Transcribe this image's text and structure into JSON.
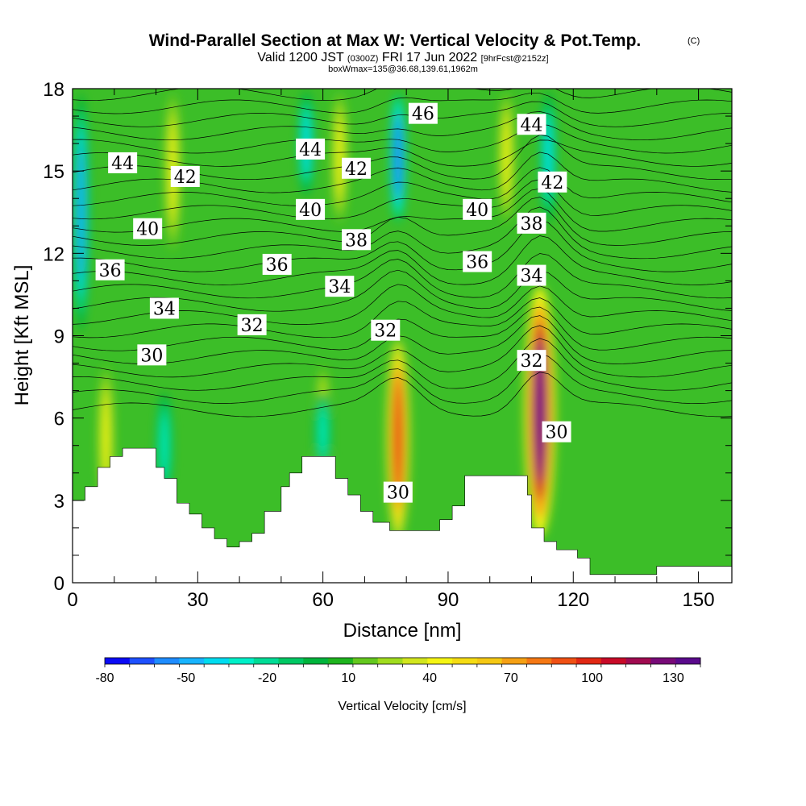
{
  "title": {
    "main": "Wind-Parallel Section at Max W: Vertical Velocity & Pot.Temp.",
    "copyright": "(C)",
    "valid_prefix": "Valid 1200 JST",
    "valid_utc": "(0300Z)",
    "valid_date": "FRI 17 Jun 2022",
    "forecast": "[9hrFcst@2152z]",
    "box_info": "boxWmax=135@36.68,139.61,1962m"
  },
  "chart_data": {
    "type": "heatmap",
    "xlabel": "Distance [nm]",
    "ylabel": "Height [Kft MSL]",
    "xlim": [
      0,
      158
    ],
    "ylim": [
      0,
      18
    ],
    "x_ticks": [
      0,
      30,
      60,
      90,
      120,
      150
    ],
    "y_ticks": [
      0,
      3,
      6,
      9,
      12,
      15,
      18
    ],
    "fill_field": "Vertical Velocity [cm/s]",
    "colorbar": {
      "label": "Vertical Velocity [cm/s]",
      "tick_values": [
        -80,
        -50,
        -20,
        10,
        40,
        70,
        100,
        130
      ],
      "range": [
        -80,
        140
      ],
      "colors": [
        "#0a0af5",
        "#1e50ff",
        "#1e8cff",
        "#18b4ff",
        "#00dcf0",
        "#00f0c8",
        "#00dc96",
        "#00c864",
        "#00b43c",
        "#1eb41e",
        "#64c81e",
        "#a0dc1e",
        "#d2e61e",
        "#f5f514",
        "#f5dc14",
        "#f5c814",
        "#f5a014",
        "#f57814",
        "#f05014",
        "#e12814",
        "#c80a28",
        "#a00a50",
        "#780a78",
        "#5a0a8c"
      ]
    },
    "updraft_cores": [
      {
        "x": 78,
        "y_range": [
          1.5,
          9
        ],
        "w_max": 100
      },
      {
        "x": 112,
        "y_range": [
          1.5,
          11
        ],
        "w_max": 135
      },
      {
        "x": 8,
        "y_range": [
          2.5,
          8
        ],
        "w_max": 45
      },
      {
        "x": 24,
        "y_range": [
          12,
          18
        ],
        "w_max": 45
      },
      {
        "x": 60,
        "y_range": [
          3,
          8
        ],
        "w_max": 45
      },
      {
        "x": 64,
        "y_range": [
          13,
          18
        ],
        "w_max": 40
      },
      {
        "x": 104,
        "y_range": [
          13,
          18
        ],
        "w_max": 40
      }
    ],
    "downdraft_cores": [
      {
        "x": 2,
        "y_range": [
          9,
          18
        ],
        "w_min": -55
      },
      {
        "x": 78,
        "y_range": [
          13,
          18
        ],
        "w_min": -65
      },
      {
        "x": 56,
        "y_range": [
          14,
          18
        ],
        "w_min": -40
      },
      {
        "x": 114,
        "y_range": [
          13,
          18
        ],
        "w_min": -40
      },
      {
        "x": 22,
        "y_range": [
          3,
          7
        ],
        "w_min": -30
      },
      {
        "x": 60,
        "y_range": [
          4,
          7
        ],
        "w_min": -30
      }
    ],
    "terrain": {
      "x": [
        0,
        3,
        6,
        9,
        12,
        20,
        22,
        25,
        28,
        31,
        34,
        37,
        40,
        43,
        46,
        50,
        52,
        55,
        58,
        63,
        66,
        69,
        72,
        76,
        86,
        88,
        91,
        94,
        107,
        109,
        110,
        113,
        116,
        121,
        124,
        127,
        140,
        158
      ],
      "height_kft": [
        3.0,
        3.5,
        4.2,
        4.6,
        4.9,
        4.2,
        3.8,
        2.9,
        2.5,
        2.0,
        1.6,
        1.3,
        1.5,
        1.8,
        2.6,
        3.5,
        4.0,
        4.6,
        4.6,
        3.8,
        3.2,
        2.6,
        2.2,
        1.9,
        1.9,
        2.3,
        2.8,
        3.9,
        3.9,
        3.2,
        2.0,
        1.5,
        1.2,
        0.9,
        0.3,
        0.3,
        0.6,
        0.6
      ]
    },
    "contour_field": "Potential Temperature",
    "isentrope_labels": [
      {
        "value": "44",
        "x": 12,
        "y": 15.3
      },
      {
        "value": "42",
        "x": 27,
        "y": 14.8
      },
      {
        "value": "40",
        "x": 18,
        "y": 12.9
      },
      {
        "value": "36",
        "x": 9,
        "y": 11.4
      },
      {
        "value": "34",
        "x": 22,
        "y": 10.0
      },
      {
        "value": "30",
        "x": 19,
        "y": 8.3
      },
      {
        "value": "32",
        "x": 43,
        "y": 9.4
      },
      {
        "value": "36",
        "x": 49,
        "y": 11.6
      },
      {
        "value": "44",
        "x": 57,
        "y": 15.8
      },
      {
        "value": "40",
        "x": 57,
        "y": 13.6
      },
      {
        "value": "42",
        "x": 68,
        "y": 15.1
      },
      {
        "value": "38",
        "x": 68,
        "y": 12.5
      },
      {
        "value": "34",
        "x": 64,
        "y": 10.8
      },
      {
        "value": "32",
        "x": 75,
        "y": 9.2
      },
      {
        "value": "46",
        "x": 84,
        "y": 17.1
      },
      {
        "value": "30",
        "x": 78,
        "y": 3.3
      },
      {
        "value": "40",
        "x": 97,
        "y": 13.6
      },
      {
        "value": "36",
        "x": 97,
        "y": 11.7
      },
      {
        "value": "44",
        "x": 110,
        "y": 16.7
      },
      {
        "value": "42",
        "x": 115,
        "y": 14.6
      },
      {
        "value": "38",
        "x": 110,
        "y": 13.1
      },
      {
        "value": "34",
        "x": 110,
        "y": 11.2
      },
      {
        "value": "32",
        "x": 110,
        "y": 8.1
      },
      {
        "value": "30",
        "x": 116,
        "y": 5.5
      }
    ]
  }
}
